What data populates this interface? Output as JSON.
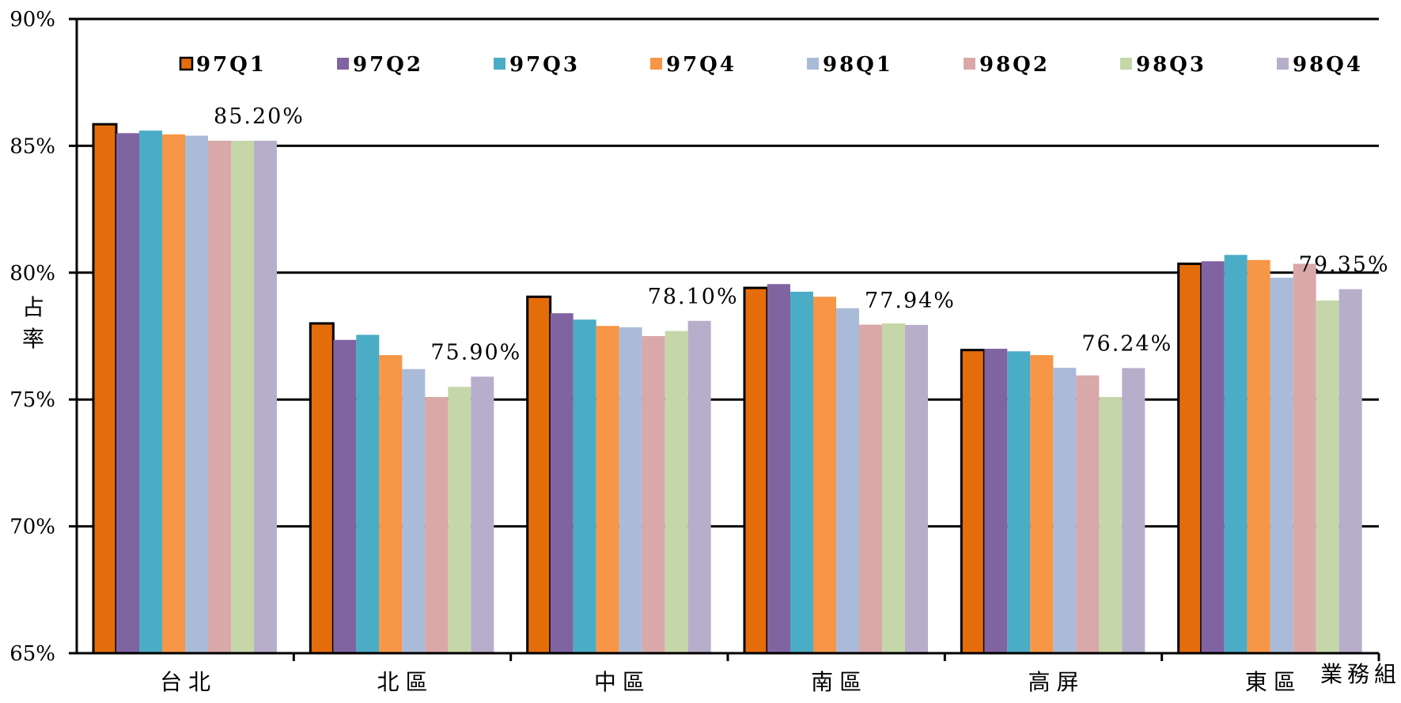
{
  "chart_data": {
    "type": "bar",
    "ylabel": "占率",
    "xlabel": "業務組",
    "ylim": [
      65,
      90
    ],
    "yticks": [
      "65%",
      "70%",
      "75%",
      "80%",
      "85%",
      "90%"
    ],
    "ytick_values": [
      65,
      70,
      75,
      80,
      85,
      90
    ],
    "grid": true,
    "legend_position": "top",
    "categories": [
      "台北",
      "北區",
      "中區",
      "南區",
      "高屏",
      "東區"
    ],
    "series": [
      {
        "name": "97Q1",
        "color": "#E46C0A",
        "outlined": true,
        "values": [
          85.85,
          78.0,
          79.05,
          79.4,
          76.95,
          80.35
        ]
      },
      {
        "name": "97Q2",
        "color": "#8064A2",
        "values": [
          85.5,
          77.35,
          78.4,
          79.55,
          77.0,
          80.45
        ]
      },
      {
        "name": "97Q3",
        "color": "#4BACC6",
        "values": [
          85.6,
          77.55,
          78.15,
          79.25,
          76.9,
          80.7
        ]
      },
      {
        "name": "97Q4",
        "color": "#F79646",
        "values": [
          85.45,
          76.75,
          77.9,
          79.05,
          76.75,
          80.5
        ]
      },
      {
        "name": "98Q1",
        "color": "#AABBD9",
        "values": [
          85.4,
          76.2,
          77.85,
          78.6,
          76.25,
          79.8
        ]
      },
      {
        "name": "98Q2",
        "color": "#D9A8A8",
        "values": [
          85.2,
          75.1,
          77.5,
          77.95,
          75.95,
          80.35
        ]
      },
      {
        "name": "98Q3",
        "color": "#C5D7A9",
        "values": [
          85.2,
          75.5,
          77.7,
          78.0,
          75.1,
          78.9
        ]
      },
      {
        "name": "98Q4",
        "color": "#B7AECB",
        "values": [
          85.2,
          75.9,
          78.1,
          77.94,
          76.24,
          79.35
        ]
      }
    ],
    "data_labels": [
      "85.20%",
      "75.90%",
      "78.10%",
      "77.94%",
      "76.24%",
      "79.35%"
    ]
  }
}
